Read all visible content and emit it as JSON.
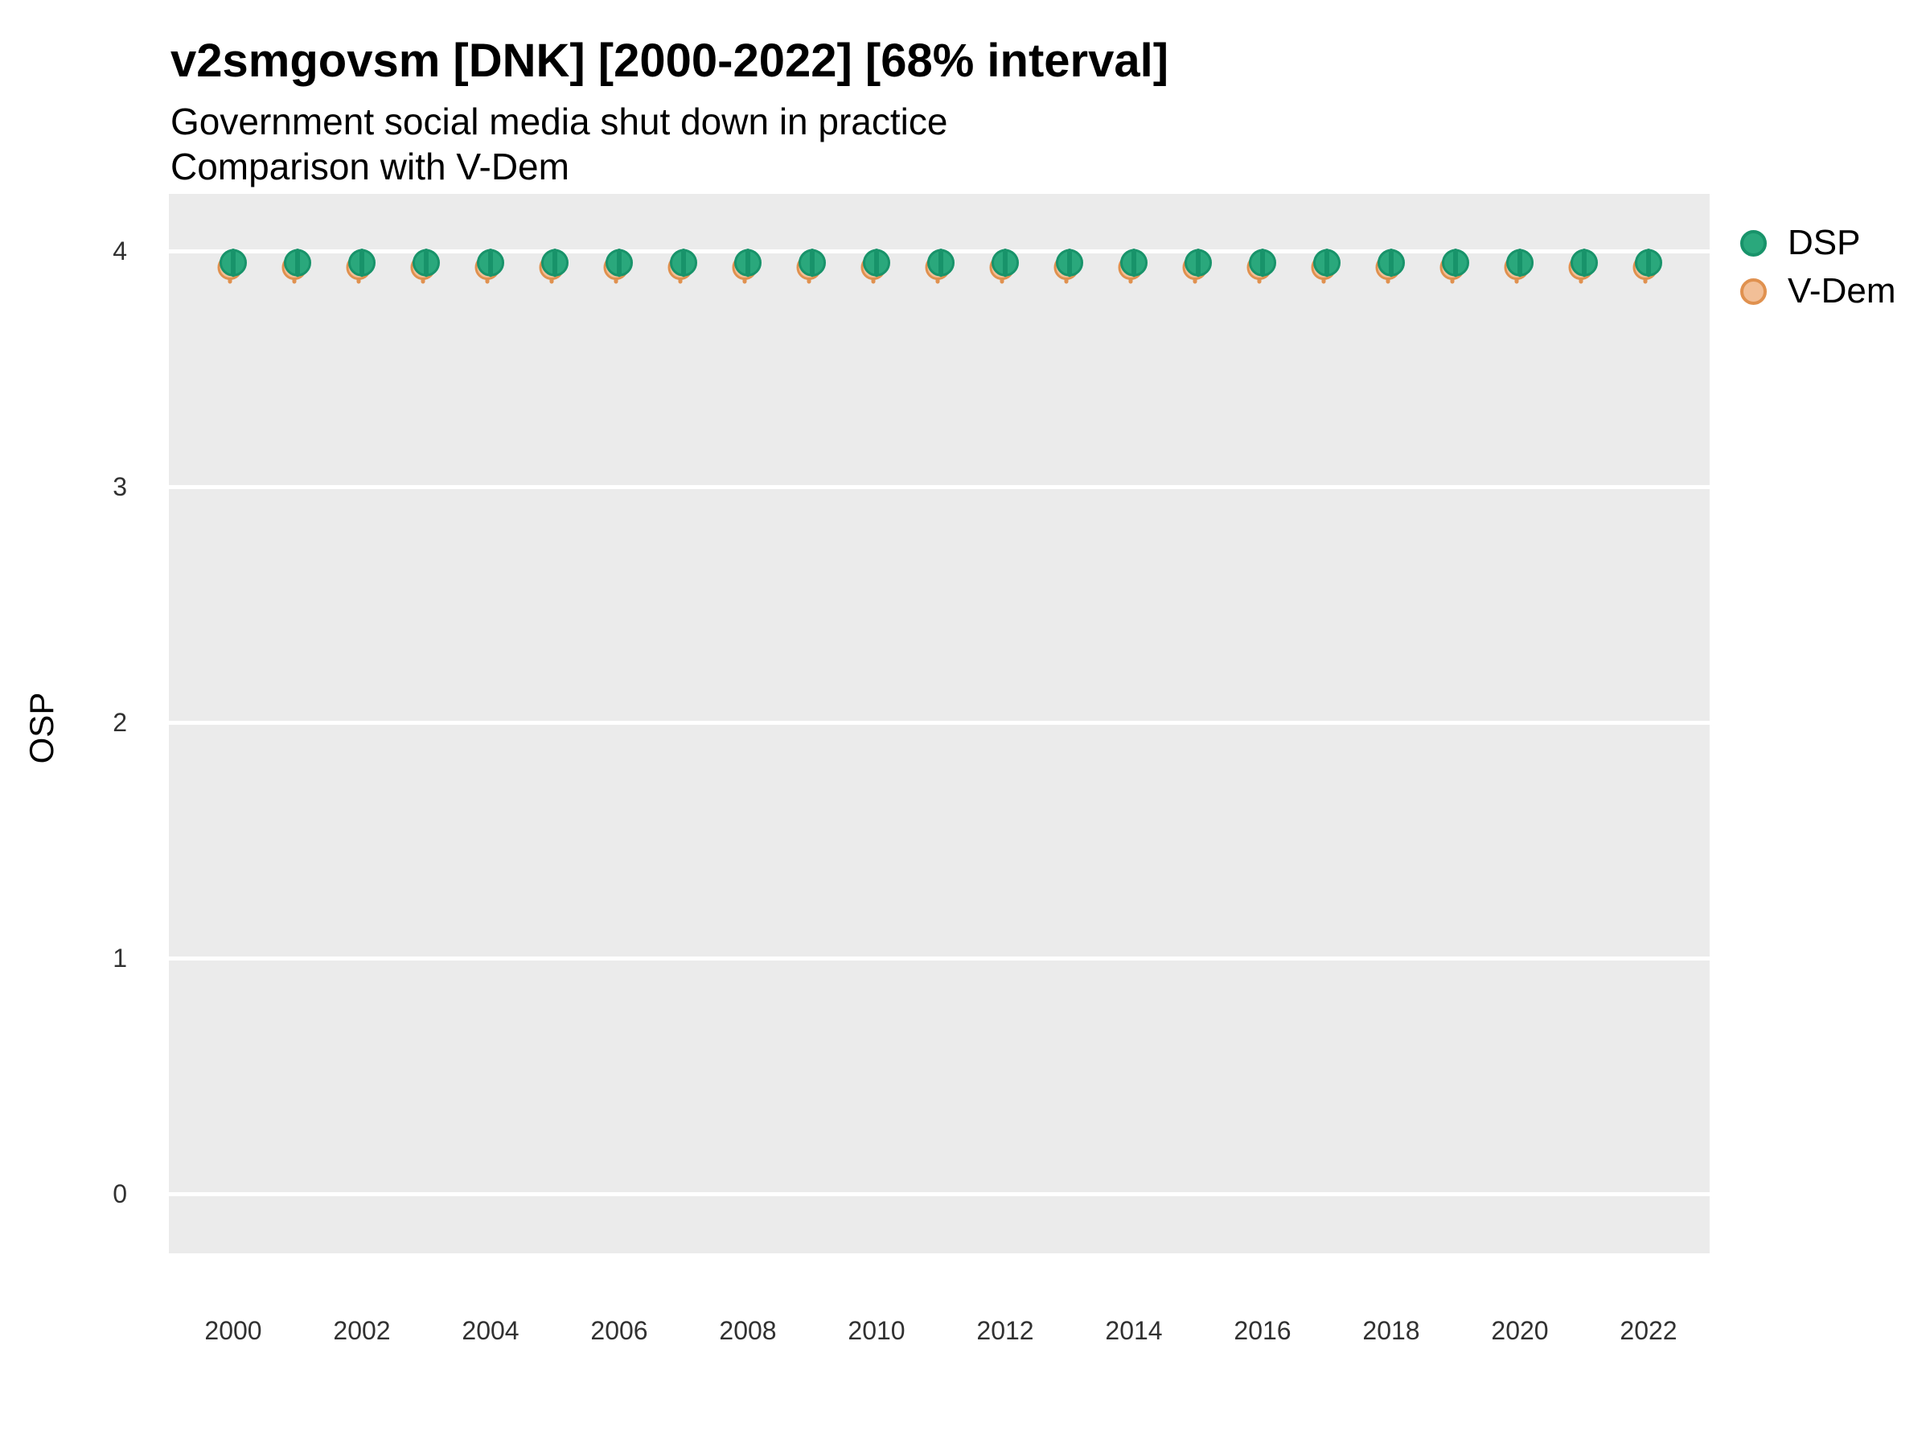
{
  "header": {
    "title": "v2smgovsm [DNK] [2000-2022] [68% interval]",
    "subtitle_line1": "Government social media shut down in practice",
    "subtitle_line2": "Comparison with V-Dem"
  },
  "legend": [
    {
      "label": "DSP",
      "fill": "#2aa87c",
      "stroke": "#18936a"
    },
    {
      "label": "V-Dem",
      "fill": "#f2bf97",
      "stroke": "#e0914f"
    }
  ],
  "chart_data": {
    "type": "scatter",
    "title": "v2smgovsm [DNK] [2000-2022] [68% interval]",
    "subtitle": "Government social media shut down in practice / Comparison with V-Dem",
    "xlabel": "",
    "ylabel": "OSP",
    "ylim": [
      -0.26,
      4.26
    ],
    "yticks": [
      0,
      1,
      2,
      3,
      4
    ],
    "ytick_labels": [
      "0",
      "1",
      "2",
      "3",
      "4"
    ],
    "xticks": [
      2000,
      2002,
      2004,
      2006,
      2008,
      2010,
      2012,
      2014,
      2016,
      2018,
      2020,
      2022
    ],
    "xtick_labels": [
      "2000",
      "2002",
      "2004",
      "2006",
      "2008",
      "2010",
      "2012",
      "2014",
      "2016",
      "2018",
      "2020",
      "2022"
    ],
    "grid": "horizontal-major-only",
    "panel_bg": "#ebebeb",
    "gridline_color": "#ffffff",
    "legend_position": "top-right",
    "interval_level": "68%",
    "x": [
      2000,
      2001,
      2002,
      2003,
      2004,
      2005,
      2006,
      2007,
      2008,
      2009,
      2010,
      2011,
      2012,
      2013,
      2014,
      2015,
      2016,
      2017,
      2018,
      2019,
      2020,
      2021,
      2022
    ],
    "series": [
      {
        "name": "DSP",
        "fill": "#2aa87c",
        "stroke": "#18936a",
        "values": [
          3.95,
          3.95,
          3.95,
          3.95,
          3.95,
          3.95,
          3.95,
          3.95,
          3.95,
          3.95,
          3.95,
          3.95,
          3.95,
          3.95,
          3.95,
          3.95,
          3.95,
          3.95,
          3.95,
          3.95,
          3.95,
          3.95,
          3.95
        ],
        "lo": [
          3.9,
          3.9,
          3.9,
          3.9,
          3.9,
          3.9,
          3.9,
          3.9,
          3.9,
          3.9,
          3.9,
          3.9,
          3.9,
          3.9,
          3.9,
          3.9,
          3.9,
          3.9,
          3.9,
          3.9,
          3.9,
          3.9,
          3.9
        ],
        "hi": [
          4.0,
          4.0,
          4.0,
          4.0,
          4.0,
          4.0,
          4.0,
          4.0,
          4.0,
          4.0,
          4.0,
          4.0,
          4.0,
          4.0,
          4.0,
          4.0,
          4.0,
          4.0,
          4.0,
          4.0,
          4.0,
          4.0,
          4.0
        ]
      },
      {
        "name": "V-Dem",
        "fill": "#f2bf97",
        "stroke": "#e0914f",
        "values": [
          3.93,
          3.93,
          3.93,
          3.93,
          3.93,
          3.93,
          3.93,
          3.93,
          3.93,
          3.93,
          3.93,
          3.93,
          3.93,
          3.93,
          3.93,
          3.93,
          3.93,
          3.93,
          3.93,
          3.93,
          3.93,
          3.93,
          3.93
        ],
        "lo": [
          3.87,
          3.87,
          3.87,
          3.87,
          3.87,
          3.87,
          3.87,
          3.87,
          3.87,
          3.87,
          3.87,
          3.87,
          3.87,
          3.87,
          3.87,
          3.87,
          3.87,
          3.87,
          3.87,
          3.87,
          3.87,
          3.87,
          3.87
        ],
        "hi": [
          3.98,
          3.98,
          3.98,
          3.98,
          3.98,
          3.98,
          3.98,
          3.98,
          3.98,
          3.98,
          3.98,
          3.98,
          3.98,
          3.98,
          3.98,
          3.98,
          3.98,
          3.98,
          3.98,
          3.98,
          3.98,
          3.98,
          3.98
        ]
      }
    ]
  }
}
